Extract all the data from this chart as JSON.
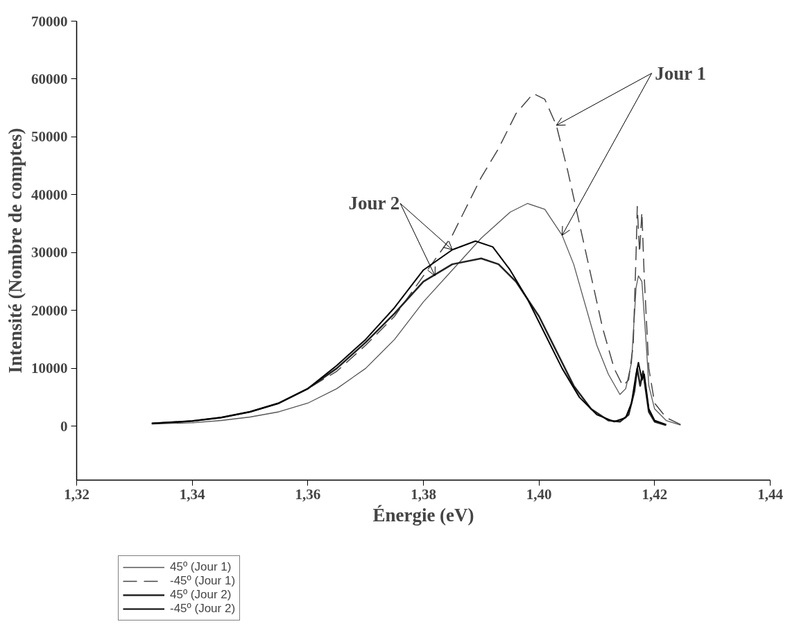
{
  "chart_data": {
    "type": "line",
    "xlabel": "Énergie (eV)",
    "ylabel": "Intensité (Nombre de comptes)",
    "xlim": [
      1.32,
      1.44
    ],
    "ylim": [
      -9300,
      70000
    ],
    "xticks": [
      {
        "value": 1.32,
        "label": "1,32"
      },
      {
        "value": 1.34,
        "label": "1,34"
      },
      {
        "value": 1.36,
        "label": "1,36"
      },
      {
        "value": 1.38,
        "label": "1,38"
      },
      {
        "value": 1.4,
        "label": "1,40"
      },
      {
        "value": 1.42,
        "label": "1,42"
      },
      {
        "value": 1.44,
        "label": "1,44"
      }
    ],
    "yticks": [
      0,
      10000,
      20000,
      30000,
      40000,
      50000,
      60000,
      70000
    ],
    "grid": false,
    "legend": "bottom left",
    "marker": "none",
    "annotations": [
      {
        "text": "Jour 1",
        "x": 1.403,
        "y": 52000
      },
      {
        "text": "Jour 2",
        "x": 1.385,
        "y": 30500
      }
    ],
    "series": [
      {
        "name": "45º (Jour 1)",
        "color": "#555555",
        "line_style": "solid",
        "x": [
          1.333,
          1.34,
          1.345,
          1.35,
          1.355,
          1.36,
          1.365,
          1.37,
          1.375,
          1.38,
          1.385,
          1.39,
          1.395,
          1.398,
          1.401,
          1.404,
          1.406,
          1.408,
          1.41,
          1.412,
          1.414,
          1.415,
          1.416,
          1.4168,
          1.4172,
          1.4178,
          1.4185,
          1.419,
          1.42,
          1.422,
          1.4245
        ],
        "values": [
          400,
          600,
          1000,
          1600,
          2500,
          4000,
          6500,
          10000,
          15000,
          21500,
          27000,
          32500,
          37000,
          38500,
          37500,
          33000,
          28000,
          21000,
          14000,
          9000,
          5500,
          6500,
          11000,
          24000,
          26000,
          25000,
          15000,
          7000,
          3000,
          1000,
          200
        ]
      },
      {
        "name": "-45º (Jour 1)",
        "color": "#444444",
        "line_style": "dashed",
        "x": [
          1.333,
          1.34,
          1.345,
          1.35,
          1.355,
          1.36,
          1.365,
          1.37,
          1.375,
          1.38,
          1.385,
          1.39,
          1.393,
          1.396,
          1.399,
          1.401,
          1.403,
          1.405,
          1.407,
          1.409,
          1.411,
          1.413,
          1.4145,
          1.4155,
          1.4163,
          1.4168,
          1.417,
          1.4174,
          1.4178,
          1.4182,
          1.419,
          1.42,
          1.422,
          1.4245
        ],
        "values": [
          500,
          900,
          1500,
          2500,
          4000,
          6500,
          9500,
          14000,
          19000,
          26000,
          33000,
          43000,
          48000,
          54000,
          57500,
          56500,
          52000,
          44000,
          35000,
          26000,
          17000,
          10000,
          7000,
          8000,
          14000,
          30000,
          38000,
          30000,
          37000,
          26000,
          10000,
          4000,
          1500,
          300
        ]
      },
      {
        "name": "45º (Jour 2)",
        "color": "#222222",
        "line_style": "solid",
        "x": [
          1.333,
          1.34,
          1.345,
          1.35,
          1.355,
          1.36,
          1.365,
          1.37,
          1.375,
          1.38,
          1.385,
          1.39,
          1.393,
          1.396,
          1.4,
          1.403,
          1.406,
          1.409,
          1.412,
          1.414,
          1.4155,
          1.4165,
          1.417,
          1.4175,
          1.418,
          1.4185,
          1.419,
          1.42,
          1.422
        ],
        "values": [
          500,
          900,
          1500,
          2500,
          4000,
          6500,
          10000,
          14500,
          19500,
          25000,
          28000,
          29000,
          28000,
          25000,
          19000,
          13000,
          7000,
          3000,
          1000,
          800,
          2000,
          6000,
          10000,
          7000,
          9500,
          6000,
          2500,
          800,
          200
        ]
      },
      {
        "name": "-45º (Jour 2)",
        "color": "#000000",
        "line_style": "solid",
        "x": [
          1.333,
          1.34,
          1.345,
          1.35,
          1.355,
          1.36,
          1.365,
          1.37,
          1.375,
          1.38,
          1.385,
          1.389,
          1.392,
          1.395,
          1.398,
          1.401,
          1.404,
          1.407,
          1.41,
          1.413,
          1.415,
          1.416,
          1.4168,
          1.4172,
          1.4178,
          1.4182,
          1.419,
          1.42,
          1.422
        ],
        "values": [
          500,
          900,
          1500,
          2500,
          4000,
          6500,
          10500,
          15000,
          20500,
          27000,
          30500,
          32000,
          31000,
          27000,
          22000,
          16000,
          10000,
          5000,
          2000,
          800,
          1500,
          4000,
          9000,
          11000,
          8000,
          9000,
          3000,
          1000,
          300
        ]
      }
    ]
  }
}
